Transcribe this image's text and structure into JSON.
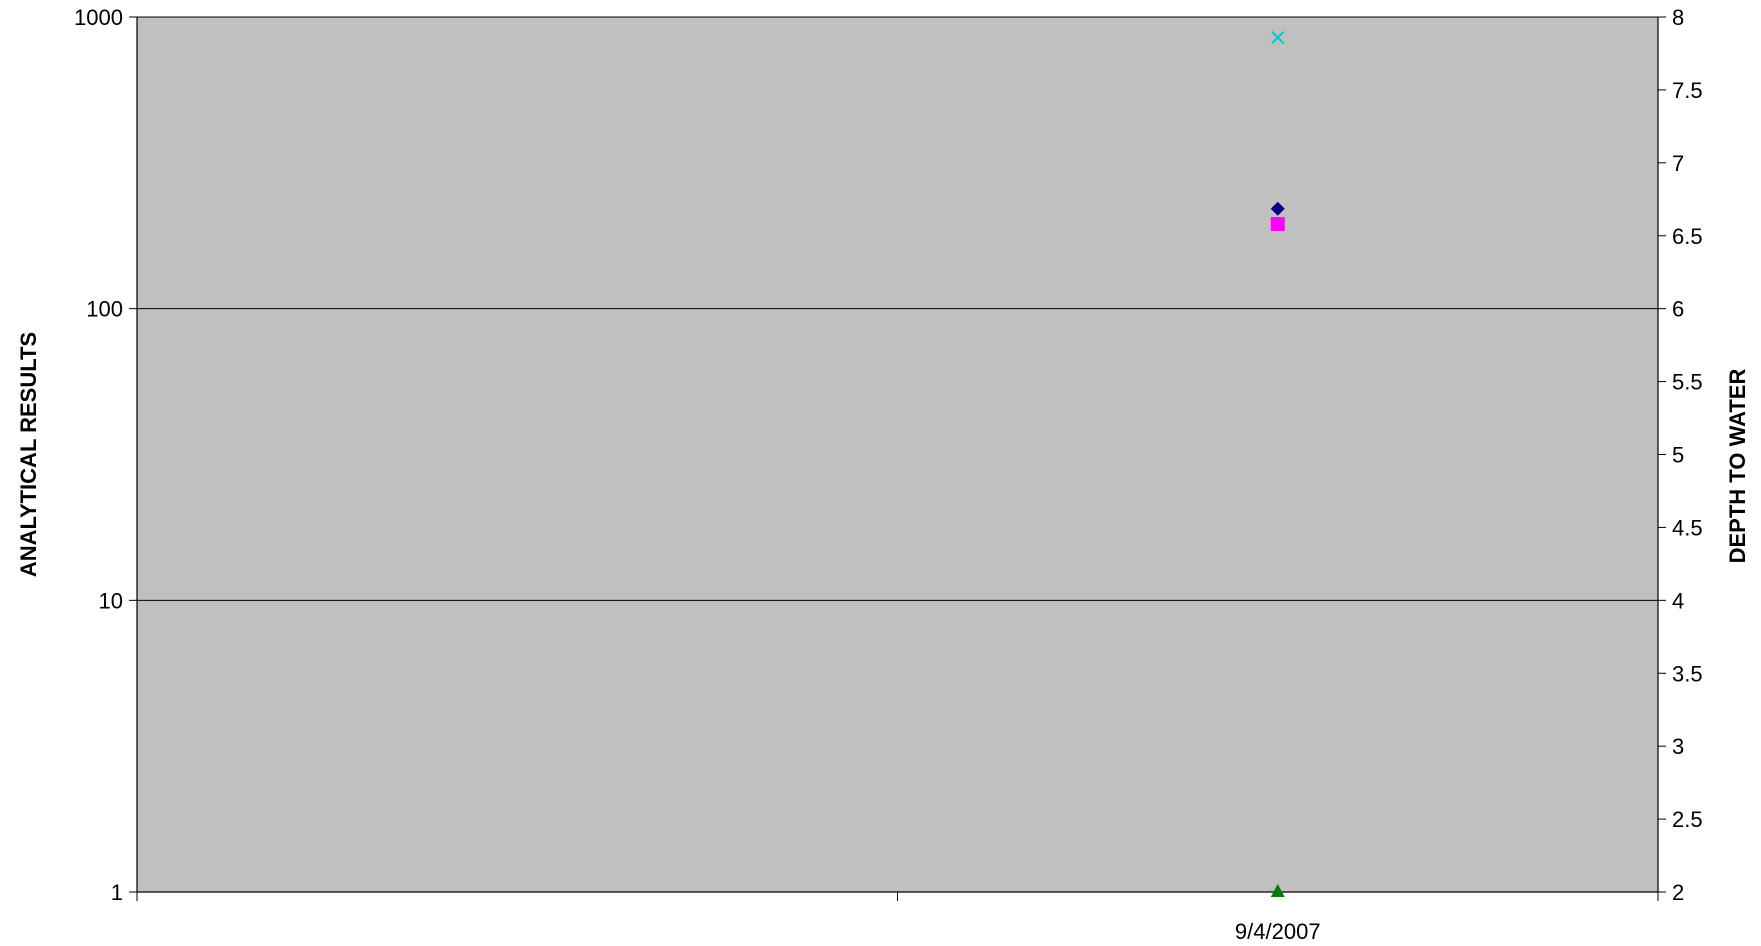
{
  "chart_data": {
    "type": "scatter",
    "title": "",
    "ylabel": "ANALYTICAL RESULTS",
    "y2label": "DEPTH TO WATER",
    "x_ticks": [
      "",
      "9/4/2007"
    ],
    "y_scale": "log",
    "y_ticks": [
      "1",
      "10",
      "100",
      "1000"
    ],
    "ylim": [
      1,
      1000
    ],
    "y2_ticks": [
      "2",
      "2.5",
      "3",
      "3.5",
      "4",
      "4.5",
      "5",
      "5.5",
      "6",
      "6.5",
      "7",
      "7.5",
      "8"
    ],
    "y2lim": [
      2,
      8
    ],
    "grid": "horizontal major",
    "legend": "none",
    "plot_bg": "#c0c0c0",
    "series": [
      {
        "marker": "diamond",
        "color": "#000080",
        "points": [
          {
            "x": "9/4/2007",
            "y": 220
          }
        ]
      },
      {
        "marker": "square",
        "color": "#ff00ff",
        "points": [
          {
            "x": "9/4/2007",
            "y": 195
          }
        ]
      },
      {
        "marker": "triangle",
        "color": "#008000",
        "points": [
          {
            "x": "9/4/2007",
            "y": 1
          }
        ]
      },
      {
        "marker": "x",
        "color": "#00cccc",
        "points": [
          {
            "x": "9/4/2007",
            "y": 850
          }
        ]
      }
    ]
  }
}
